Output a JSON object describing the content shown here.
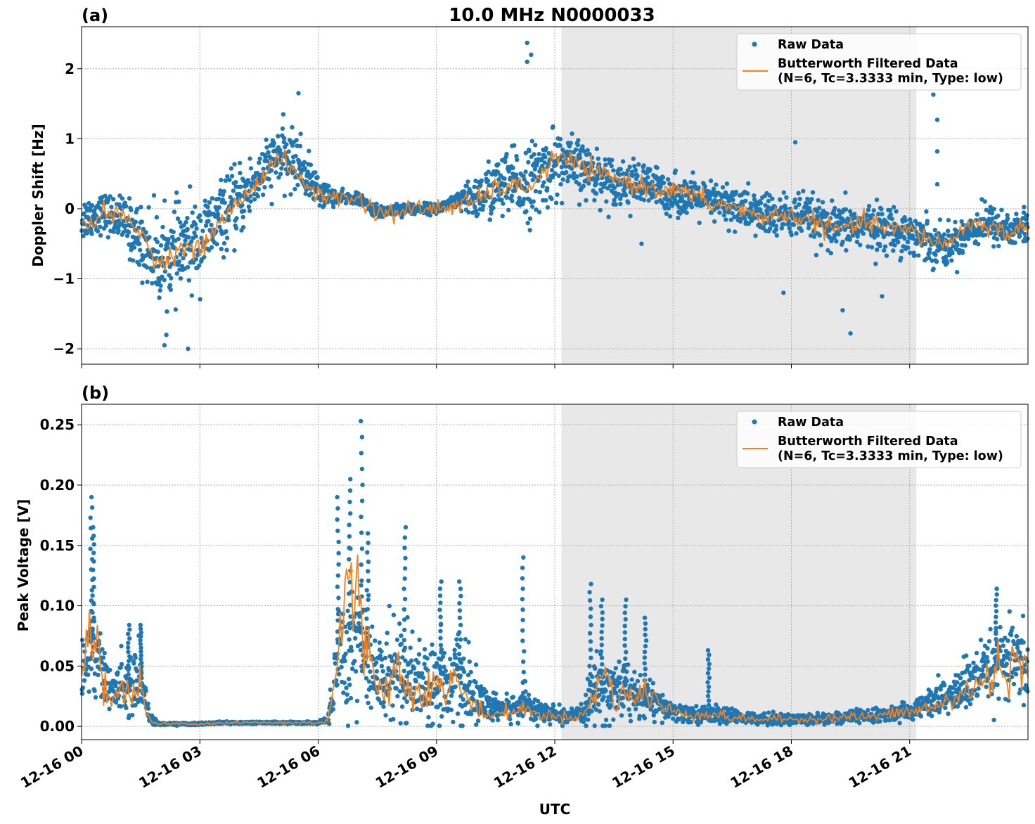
{
  "figure": {
    "title": "10.0 MHz N0000033",
    "xlabel": "UTC"
  },
  "legend": {
    "raw_label": "Raw Data",
    "filtered_label_line1": "Butterworth Filtered Data",
    "filtered_label_line2": "(N=6, Tc=3.3333 min, Type: low)"
  },
  "colors": {
    "raw": "#1f77b4",
    "filtered": "#ff7f0e",
    "night_shading": "#e8e8e8"
  },
  "chart_data": [
    {
      "type": "scatter",
      "panel_label": "(a)",
      "title": "10.0 MHz N0000033",
      "xlabel": "",
      "ylabel": "Doppler Shift [Hz]",
      "xlim_hours": [
        0,
        24
      ],
      "ylim": [
        -2.22,
        2.6
      ],
      "yticks": [
        2,
        1,
        0,
        -1,
        -2
      ],
      "ytick_labels": [
        "2",
        "1",
        "0",
        "−1",
        "−2"
      ],
      "grid": true,
      "legend_position": "top-right",
      "shaded_interval_hours": [
        12.17,
        21.17
      ],
      "x_hours": [
        0,
        0.5,
        1,
        1.5,
        2,
        2.5,
        3,
        3.5,
        4,
        4.5,
        5,
        5.5,
        6,
        6.5,
        7,
        7.5,
        8,
        8.5,
        9,
        9.5,
        10,
        10.5,
        11,
        11.5,
        12,
        12.5,
        13,
        13.5,
        14,
        14.5,
        15,
        15.5,
        16,
        16.5,
        17,
        17.5,
        18,
        18.5,
        19,
        19.5,
        20,
        20.5,
        21,
        21.5,
        22,
        22.5,
        23,
        23.5,
        24
      ],
      "series": [
        {
          "name": "Raw Data",
          "values": [
            -0.15,
            -0.05,
            -0.15,
            -0.45,
            -0.75,
            -0.6,
            -0.45,
            -0.15,
            0.1,
            0.45,
            0.75,
            0.65,
            0.25,
            0.15,
            0.15,
            -0.05,
            0.0,
            0.0,
            0.0,
            0.1,
            0.15,
            0.3,
            0.35,
            0.4,
            0.65,
            0.6,
            0.5,
            0.4,
            0.35,
            0.3,
            0.2,
            0.15,
            0.1,
            0.05,
            -0.05,
            -0.1,
            -0.1,
            -0.15,
            -0.3,
            -0.25,
            -0.25,
            -0.3,
            -0.35,
            -0.45,
            -0.55,
            -0.3,
            -0.2,
            -0.3,
            -0.25
          ],
          "spread": [
            0.35,
            0.3,
            0.35,
            0.55,
            0.7,
            0.7,
            0.65,
            0.55,
            0.55,
            0.45,
            0.45,
            0.45,
            0.25,
            0.1,
            0.08,
            0.1,
            0.1,
            0.08,
            0.08,
            0.12,
            0.35,
            0.5,
            0.55,
            0.6,
            0.55,
            0.45,
            0.4,
            0.35,
            0.35,
            0.35,
            0.3,
            0.3,
            0.3,
            0.35,
            0.35,
            0.35,
            0.35,
            0.35,
            0.35,
            0.35,
            0.35,
            0.35,
            0.35,
            0.35,
            0.3,
            0.3,
            0.3,
            0.3,
            0.3
          ]
        },
        {
          "name": "Butterworth Filtered Data (N=6, Tc=3.3333 min, Type: low)",
          "values": [
            -0.3,
            -0.05,
            -0.1,
            -0.35,
            -0.8,
            -0.55,
            -0.6,
            -0.2,
            0.1,
            0.4,
            0.75,
            0.45,
            0.2,
            0.15,
            0.15,
            -0.05,
            -0.05,
            0.0,
            0.0,
            0.05,
            0.1,
            0.3,
            0.3,
            0.35,
            0.75,
            0.65,
            0.5,
            0.45,
            0.35,
            0.3,
            0.25,
            0.2,
            0.05,
            0.05,
            -0.1,
            -0.1,
            -0.1,
            -0.15,
            -0.3,
            -0.25,
            -0.2,
            -0.3,
            -0.3,
            -0.45,
            -0.5,
            -0.2,
            -0.25,
            -0.35,
            -0.25
          ]
        }
      ],
      "sparse_outliers": [
        [
          11.3,
          2.37
        ],
        [
          11.4,
          2.2
        ],
        [
          11.3,
          2.1
        ],
        [
          21.6,
          1.63
        ],
        [
          21.7,
          1.27
        ],
        [
          21.7,
          0.82
        ],
        [
          21.7,
          0.35
        ],
        [
          2.7,
          -2.0
        ],
        [
          2.1,
          -1.95
        ],
        [
          19.5,
          -1.78
        ],
        [
          19.3,
          -1.45
        ],
        [
          17.8,
          -1.2
        ],
        [
          20.3,
          -1.25
        ],
        [
          14.2,
          -0.5
        ],
        [
          5.5,
          1.65
        ],
        [
          18.1,
          0.95
        ]
      ]
    },
    {
      "type": "scatter",
      "panel_label": "(b)",
      "xlabel": "UTC",
      "ylabel": "Peak Voltage [V]",
      "xlim_hours": [
        0,
        24
      ],
      "ylim": [
        -0.011,
        0.267
      ],
      "yticks": [
        0.25,
        0.2,
        0.15,
        0.1,
        0.05,
        0.0
      ],
      "ytick_labels": [
        "0.25",
        "0.20",
        "0.15",
        "0.10",
        "0.05",
        "0.00"
      ],
      "xticks_hours": [
        0,
        3,
        6,
        9,
        12,
        15,
        18,
        21
      ],
      "xtick_labels": [
        "12-16 00",
        "12-16 03",
        "12-16 06",
        "12-16 09",
        "12-16 12",
        "12-16 15",
        "12-16 18",
        "12-16 21"
      ],
      "grid": true,
      "legend_position": "top-right",
      "shaded_interval_hours": [
        12.17,
        21.17
      ],
      "x_hours": [
        0,
        0.25,
        0.5,
        0.75,
        1,
        1.25,
        1.5,
        1.75,
        2,
        2.5,
        3,
        3.5,
        4,
        4.5,
        5,
        5.5,
        6,
        6.25,
        6.5,
        6.75,
        7,
        7.25,
        7.5,
        7.75,
        8,
        8.25,
        8.5,
        8.75,
        9,
        9.25,
        9.5,
        9.75,
        10,
        10.25,
        10.5,
        10.75,
        11,
        11.25,
        11.5,
        11.75,
        12,
        12.25,
        12.5,
        12.75,
        13,
        13.25,
        13.5,
        13.75,
        14,
        14.25,
        14.5,
        14.75,
        15,
        15.5,
        16,
        16.5,
        17,
        17.5,
        18,
        18.5,
        19,
        19.5,
        20,
        20.5,
        21,
        21.5,
        22,
        22.5,
        23,
        23.5,
        24
      ],
      "series": [
        {
          "name": "Raw Data",
          "values": [
            0.04,
            0.07,
            0.05,
            0.025,
            0.04,
            0.03,
            0.04,
            0.005,
            0.002,
            0.002,
            0.002,
            0.003,
            0.003,
            0.003,
            0.003,
            0.003,
            0.003,
            0.005,
            0.06,
            0.07,
            0.08,
            0.05,
            0.04,
            0.045,
            0.05,
            0.045,
            0.04,
            0.035,
            0.04,
            0.035,
            0.04,
            0.03,
            0.025,
            0.015,
            0.015,
            0.015,
            0.015,
            0.02,
            0.015,
            0.01,
            0.01,
            0.008,
            0.008,
            0.012,
            0.03,
            0.03,
            0.03,
            0.03,
            0.025,
            0.025,
            0.02,
            0.015,
            0.012,
            0.01,
            0.01,
            0.008,
            0.007,
            0.006,
            0.006,
            0.006,
            0.007,
            0.008,
            0.008,
            0.01,
            0.012,
            0.02,
            0.025,
            0.035,
            0.045,
            0.055,
            0.045
          ],
          "spread": [
            0.03,
            0.05,
            0.03,
            0.02,
            0.025,
            0.025,
            0.025,
            0.005,
            0.001,
            0.001,
            0.001,
            0.001,
            0.001,
            0.001,
            0.001,
            0.001,
            0.001,
            0.003,
            0.06,
            0.07,
            0.08,
            0.05,
            0.04,
            0.045,
            0.05,
            0.045,
            0.04,
            0.035,
            0.04,
            0.035,
            0.04,
            0.03,
            0.025,
            0.015,
            0.012,
            0.012,
            0.012,
            0.015,
            0.012,
            0.008,
            0.008,
            0.006,
            0.006,
            0.01,
            0.03,
            0.03,
            0.03,
            0.03,
            0.02,
            0.02,
            0.015,
            0.012,
            0.008,
            0.008,
            0.008,
            0.006,
            0.005,
            0.005,
            0.005,
            0.005,
            0.005,
            0.006,
            0.006,
            0.007,
            0.008,
            0.012,
            0.018,
            0.025,
            0.03,
            0.035,
            0.03
          ]
        },
        {
          "name": "Butterworth Filtered Data (N=6, Tc=3.3333 min, Type: low)",
          "values": [
            0.04,
            0.09,
            0.05,
            0.02,
            0.03,
            0.025,
            0.035,
            0.003,
            0.002,
            0.002,
            0.002,
            0.003,
            0.003,
            0.003,
            0.003,
            0.003,
            0.003,
            0.005,
            0.06,
            0.12,
            0.1,
            0.06,
            0.04,
            0.03,
            0.05,
            0.03,
            0.035,
            0.03,
            0.035,
            0.025,
            0.045,
            0.02,
            0.02,
            0.008,
            0.01,
            0.012,
            0.012,
            0.015,
            0.01,
            0.01,
            0.008,
            0.008,
            0.008,
            0.01,
            0.025,
            0.05,
            0.02,
            0.03,
            0.02,
            0.03,
            0.025,
            0.015,
            0.012,
            0.01,
            0.01,
            0.007,
            0.006,
            0.006,
            0.006,
            0.006,
            0.007,
            0.008,
            0.008,
            0.01,
            0.012,
            0.015,
            0.02,
            0.03,
            0.04,
            0.055,
            0.04
          ]
        }
      ],
      "peaks": [
        [
          0.25,
          0.19
        ],
        [
          0.3,
          0.165
        ],
        [
          1.2,
          0.084
        ],
        [
          1.5,
          0.084
        ],
        [
          6.5,
          0.19
        ],
        [
          6.8,
          0.205
        ],
        [
          7.1,
          0.253
        ],
        [
          7.25,
          0.16
        ],
        [
          8.2,
          0.165
        ],
        [
          9.1,
          0.12
        ],
        [
          9.6,
          0.12
        ],
        [
          11.2,
          0.14
        ],
        [
          12.9,
          0.118
        ],
        [
          13.2,
          0.105
        ],
        [
          13.8,
          0.105
        ],
        [
          14.3,
          0.09
        ],
        [
          15.9,
          0.063
        ],
        [
          23.2,
          0.114
        ]
      ]
    }
  ]
}
